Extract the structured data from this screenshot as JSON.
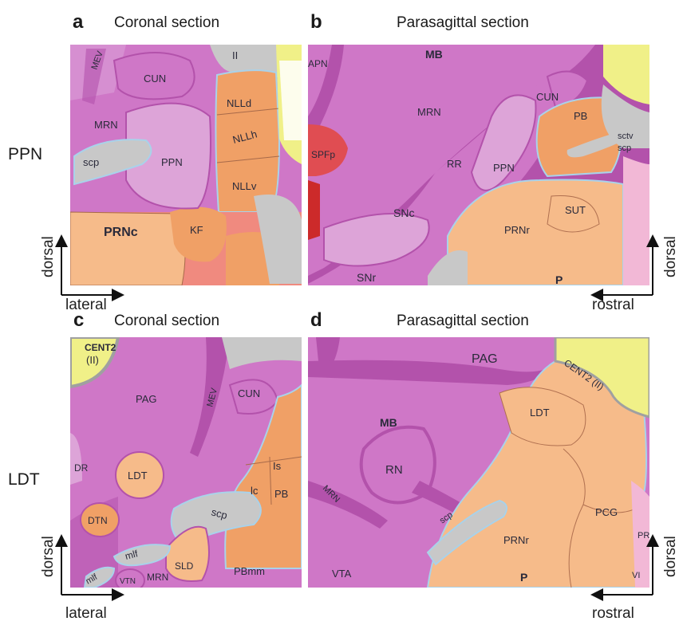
{
  "panels": [
    {
      "letter": "a",
      "title": "Coronal section"
    },
    {
      "letter": "b",
      "title": "Parasagittal section"
    },
    {
      "letter": "c",
      "title": "Coronal section"
    },
    {
      "letter": "d",
      "title": "Parasagittal section"
    }
  ],
  "rows": [
    "PPN",
    "LDT"
  ],
  "axes": {
    "dorsal": "dorsal",
    "lateral": "lateral",
    "rostral": "rostral"
  },
  "colors": {
    "magenta": "#cf77c7",
    "magenta_dark": "#b352ab",
    "pink_light": "#dda4d8",
    "orange": "#f0a066",
    "peach": "#f6bb8a",
    "salmon": "#f08a7f",
    "red": "#e04d52",
    "grey": "#c8c8c8",
    "yellow": "#f0f088",
    "vessel": "#a9d2ea"
  },
  "labels": {
    "a": {
      "mev": "MEV",
      "ii": "II",
      "cun": "CUN",
      "mrn": "MRN",
      "nlld": "NLLd",
      "nllh": "NLLh",
      "scp": "scp",
      "ppn": "PPN",
      "nllv": "NLLv",
      "prnc": "PRNc",
      "kf": "KF"
    },
    "b": {
      "apn": "APN",
      "mb": "MB",
      "mrn": "MRN",
      "cun": "CUN",
      "sctv": "sctv",
      "pb": "PB",
      "scp": "scp",
      "spfp": "SPFp",
      "rr": "RR",
      "ppn": "PPN",
      "snc": "SNc",
      "sut": "SUT",
      "prnr": "PRNr",
      "snr": "SNr",
      "p": "P"
    },
    "c": {
      "cent2": "CENT2",
      "ii": "(II)",
      "pag": "PAG",
      "mev": "MEV",
      "cun": "CUN",
      "dr": "DR",
      "ldt": "LDT",
      "is": "Is",
      "lc": "lc",
      "pb": "PB",
      "dtn": "DTN",
      "scp": "scp",
      "mlf": "mlf",
      "sld": "SLD",
      "pbmm": "PBmm",
      "mlf2": "mlf",
      "vtn": "VTN",
      "mrn": "MRN"
    },
    "d": {
      "pag": "PAG",
      "mb": "MB",
      "cent2": "CENT2 (II)",
      "ldt": "LDT",
      "mrn": "MRN",
      "rn": "RN",
      "scp": "scp",
      "pcg": "PCG",
      "prnr": "PRNr",
      "pr": "PR",
      "vta": "VTA",
      "p": "P",
      "vi": "VI"
    }
  }
}
